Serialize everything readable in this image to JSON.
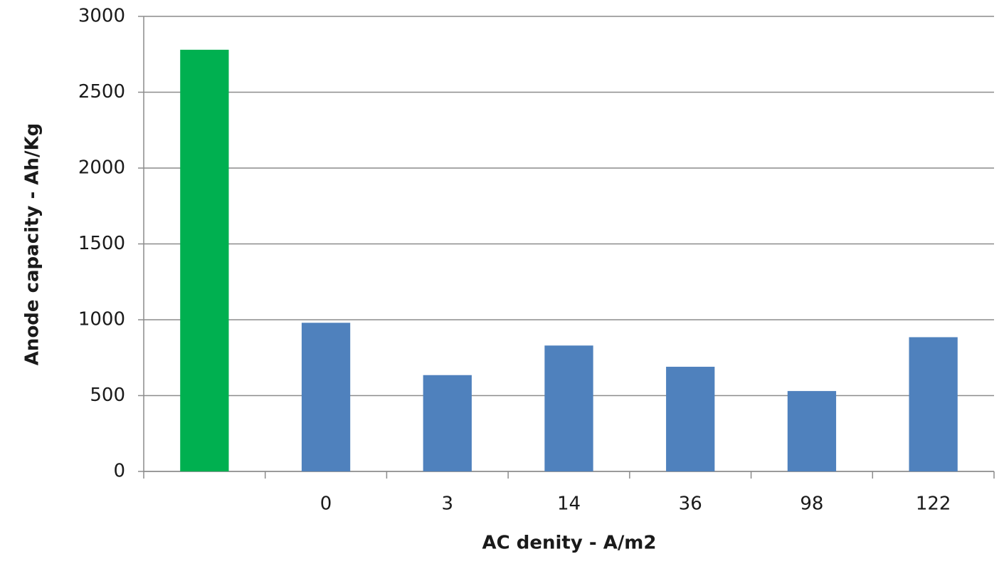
{
  "chart_data": {
    "type": "bar",
    "x_label": "AC denity - A/m2",
    "y_label": "Anode capacity - Ah/Kg",
    "categories": [
      null,
      "0",
      "3",
      "14",
      "36",
      "98",
      "122"
    ],
    "values": [
      2780,
      980,
      635,
      830,
      690,
      530,
      885
    ],
    "colors": [
      "#00b050",
      "#4f81bd",
      "#4f81bd",
      "#4f81bd",
      "#4f81bd",
      "#4f81bd",
      "#4f81bd"
    ],
    "ylim": [
      0,
      3000
    ],
    "yticks": [
      0,
      500,
      1000,
      1500,
      2000,
      2500,
      3000
    ],
    "grid": true
  }
}
